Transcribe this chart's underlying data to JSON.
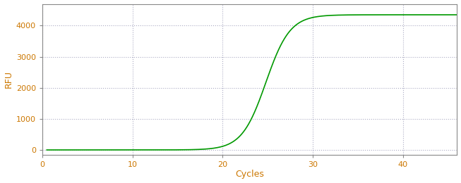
{
  "title": "",
  "xlabel": "Cycles",
  "ylabel": "RFU",
  "xlim": [
    0,
    46
  ],
  "ylim": [
    -150,
    4700
  ],
  "yticks": [
    0,
    1000,
    2000,
    3000,
    4000
  ],
  "xticks": [
    0,
    10,
    20,
    30,
    40
  ],
  "line_color": "#009900",
  "background_color": "#ffffff",
  "grid_color": "#8888aa",
  "sigmoid_L": 4350,
  "sigmoid_k": 0.75,
  "sigmoid_x0": 24.8,
  "x_start": 0.5,
  "x_end": 46,
  "tick_color": "#cc7700",
  "label_color": "#cc7700",
  "spine_color": "#888888",
  "xlabel_fontsize": 9,
  "ylabel_fontsize": 9,
  "tick_fontsize": 8
}
